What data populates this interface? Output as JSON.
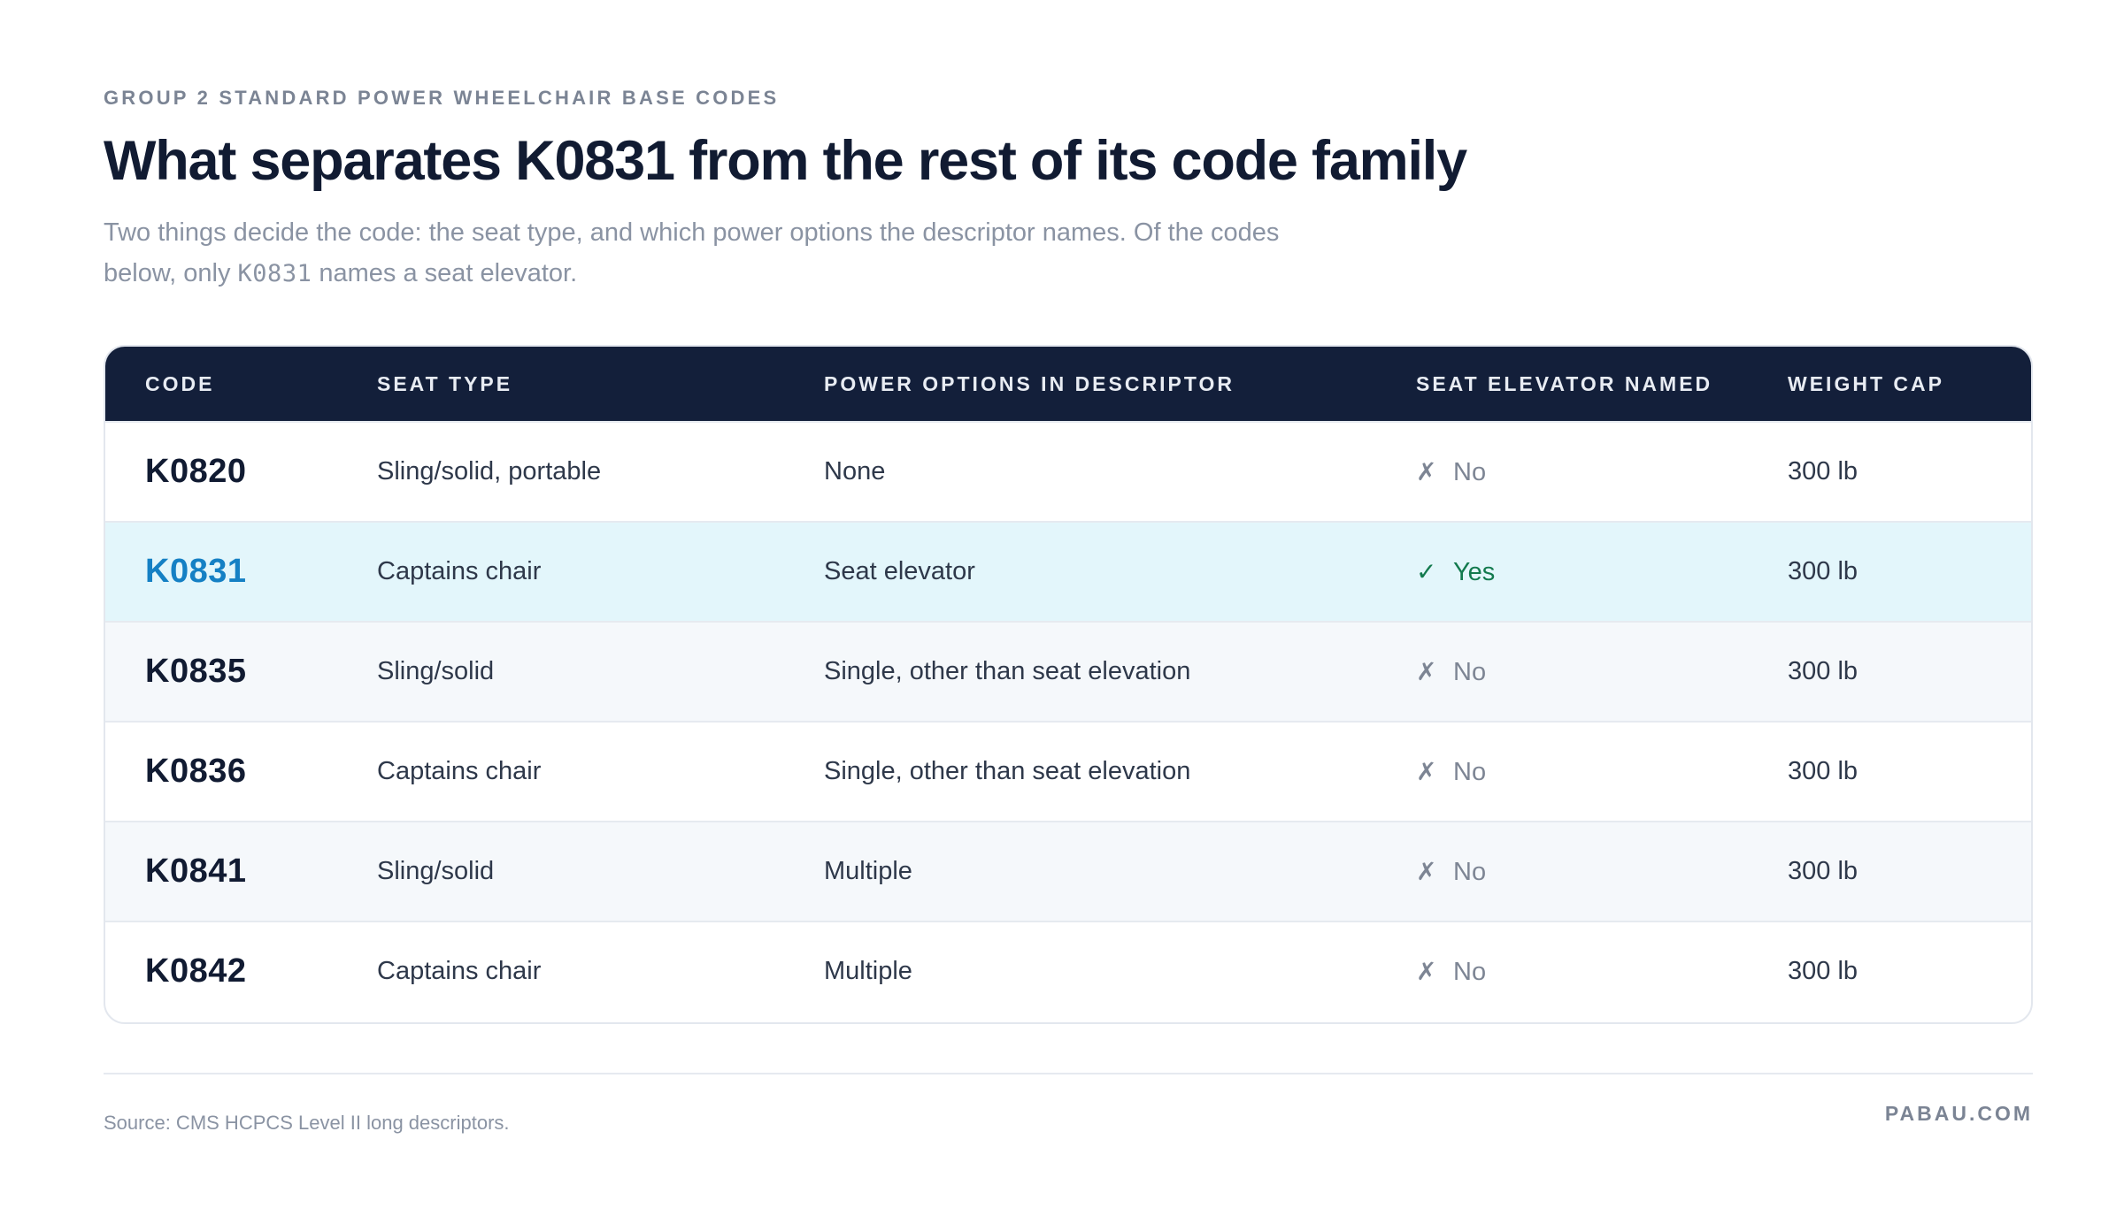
{
  "header": {
    "eyebrow": "GROUP 2 STANDARD POWER WHEELCHAIR BASE CODES",
    "title": "What separates K0831 from the rest of its code family",
    "subtitle_part1": "Two things decide the code: the seat type, and which power options the descriptor names. Of the codes below, only ",
    "subtitle_code": "K0831",
    "subtitle_part2": " names a seat elevator."
  },
  "table": {
    "columns": [
      "CODE",
      "SEAT TYPE",
      "POWER OPTIONS IN DESCRIPTOR",
      "SEAT ELEVATOR NAMED",
      "WEIGHT CAP"
    ],
    "rows": [
      {
        "code": "K0820",
        "seat_type": "Sling/solid, portable",
        "power_options": "None",
        "elevator_mark": "✗",
        "elevator": "No",
        "weight_cap": "300 lb"
      },
      {
        "code": "K0831",
        "seat_type": "Captains chair",
        "power_options": "Seat elevator",
        "elevator_mark": "✓",
        "elevator": "Yes",
        "weight_cap": "300 lb"
      },
      {
        "code": "K0835",
        "seat_type": "Sling/solid",
        "power_options": "Single, other than seat elevation",
        "elevator_mark": "✗",
        "elevator": "No",
        "weight_cap": "300 lb"
      },
      {
        "code": "K0836",
        "seat_type": "Captains chair",
        "power_options": "Single, other than seat elevation",
        "elevator_mark": "✗",
        "elevator": "No",
        "weight_cap": "300 lb"
      },
      {
        "code": "K0841",
        "seat_type": "Sling/solid",
        "power_options": "Multiple",
        "elevator_mark": "✗",
        "elevator": "No",
        "weight_cap": "300 lb"
      },
      {
        "code": "K0842",
        "seat_type": "Captains chair",
        "power_options": "Multiple",
        "elevator_mark": "✗",
        "elevator": "No",
        "weight_cap": "300 lb"
      }
    ]
  },
  "footer": {
    "source": "Source: CMS HCPCS Level II long descriptors.",
    "brand": "PABAU.COM"
  },
  "colors": {
    "header_bg": "#131f3a",
    "highlight_row": "#e3f6fb",
    "highlight_code": "#1580c4",
    "yes_color": "#137a4e"
  }
}
